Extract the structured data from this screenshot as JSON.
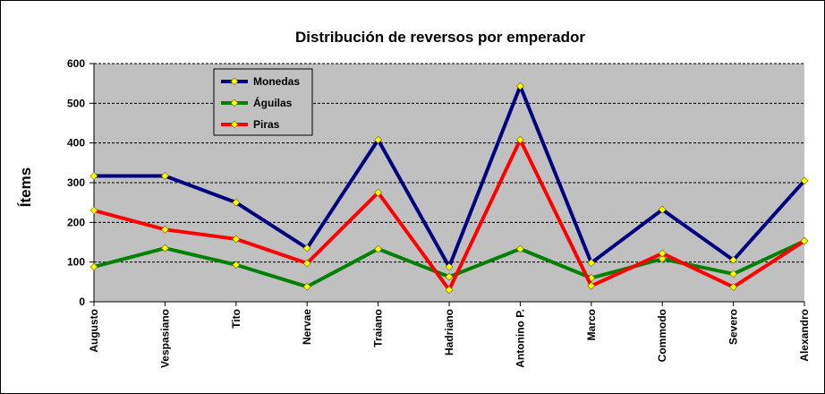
{
  "chart_data": {
    "type": "line",
    "title": "Distribución de reversos por emperador",
    "xlabel": "",
    "ylabel": "Ítems",
    "ylim": [
      0,
      600
    ],
    "yticks": [
      0,
      100,
      200,
      300,
      400,
      500,
      600
    ],
    "grid": "horizontal dashed",
    "legend_position": "top-left",
    "plot_background": "#c0c0c0",
    "categories": [
      "Augusto",
      "Vespasiano",
      "Tito",
      "Nervae",
      "Traiano",
      "Hadriano",
      "Antonino P.",
      "Marco",
      "Commodo",
      "Severo",
      "Alexandro"
    ],
    "series": [
      {
        "name": "Monedas",
        "color": "#000080",
        "values": [
          317,
          317,
          250,
          135,
          408,
          88,
          543,
          98,
          232,
          105,
          305
        ]
      },
      {
        "name": "Águilas",
        "color": "#008000",
        "values": [
          88,
          135,
          93,
          38,
          133,
          63,
          133,
          60,
          108,
          70,
          153
        ]
      },
      {
        "name": "Piras",
        "color": "#ff0000",
        "values": [
          230,
          182,
          158,
          97,
          275,
          30,
          408,
          40,
          122,
          37,
          153
        ]
      }
    ],
    "marker_color": "#ffff00"
  }
}
